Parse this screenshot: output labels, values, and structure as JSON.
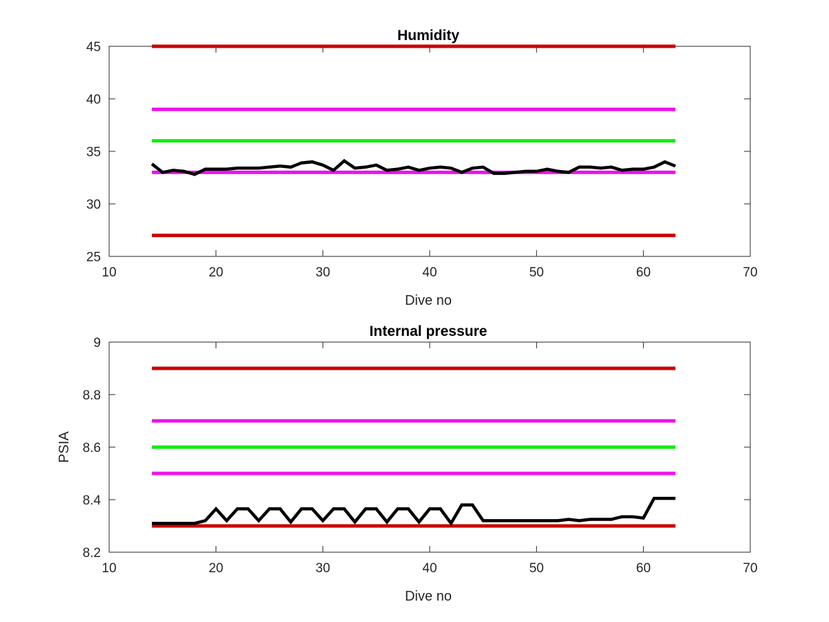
{
  "colors": {
    "red": "#cc0000",
    "magenta": "#ee11ee",
    "green": "#11ee11",
    "black": "#000000"
  },
  "chart_data": [
    {
      "type": "line",
      "title": "Humidity",
      "xlabel": "Dive no",
      "ylabel": "",
      "xlim": [
        10,
        70
      ],
      "ylim": [
        25,
        45
      ],
      "xticks": [
        "10",
        "20",
        "30",
        "40",
        "50",
        "60",
        "70"
      ],
      "yticks": [
        "25",
        "30",
        "35",
        "40",
        "45"
      ],
      "grid": false,
      "reference_lines": [
        {
          "y": 45,
          "x": [
            14,
            63
          ],
          "color": "red"
        },
        {
          "y": 39,
          "x": [
            14,
            63
          ],
          "color": "magenta"
        },
        {
          "y": 36,
          "x": [
            14,
            63
          ],
          "color": "green"
        },
        {
          "y": 33,
          "x": [
            14,
            63
          ],
          "color": "magenta"
        },
        {
          "y": 27,
          "x": [
            14,
            63
          ],
          "color": "red"
        }
      ],
      "series": [
        {
          "color": "black",
          "x": [
            14,
            15,
            16,
            17,
            18,
            19,
            20,
            21,
            22,
            23,
            24,
            25,
            26,
            27,
            28,
            29,
            30,
            31,
            32,
            33,
            34,
            35,
            36,
            37,
            38,
            39,
            40,
            41,
            42,
            43,
            44,
            45,
            46,
            47,
            48,
            49,
            50,
            51,
            52,
            53,
            54,
            55,
            56,
            57,
            58,
            59,
            60,
            61,
            62,
            63
          ],
          "y": [
            33.8,
            33.0,
            33.2,
            33.1,
            32.8,
            33.3,
            33.3,
            33.3,
            33.4,
            33.4,
            33.4,
            33.5,
            33.6,
            33.5,
            33.9,
            34.0,
            33.7,
            33.2,
            34.1,
            33.4,
            33.5,
            33.7,
            33.2,
            33.3,
            33.5,
            33.2,
            33.4,
            33.5,
            33.4,
            33.0,
            33.4,
            33.5,
            32.9,
            32.9,
            33.0,
            33.1,
            33.1,
            33.3,
            33.1,
            33.0,
            33.5,
            33.5,
            33.4,
            33.5,
            33.2,
            33.3,
            33.3,
            33.5,
            34.0,
            33.6
          ]
        }
      ]
    },
    {
      "type": "line",
      "title": "Internal pressure",
      "xlabel": "Dive no",
      "ylabel": "PSIA",
      "xlim": [
        10,
        70
      ],
      "ylim": [
        8.2,
        9.0
      ],
      "xticks": [
        "10",
        "20",
        "30",
        "40",
        "50",
        "60",
        "70"
      ],
      "yticks": [
        "8.2",
        "8.4",
        "8.6",
        "8.8",
        "9"
      ],
      "grid": false,
      "reference_lines": [
        {
          "y": 8.9,
          "x": [
            14,
            63
          ],
          "color": "red"
        },
        {
          "y": 8.7,
          "x": [
            14,
            63
          ],
          "color": "magenta"
        },
        {
          "y": 8.6,
          "x": [
            14,
            63
          ],
          "color": "green"
        },
        {
          "y": 8.5,
          "x": [
            14,
            63
          ],
          "color": "magenta"
        },
        {
          "y": 8.3,
          "x": [
            14,
            63
          ],
          "color": "red"
        }
      ],
      "series": [
        {
          "color": "black",
          "x": [
            14,
            15,
            16,
            17,
            18,
            19,
            20,
            21,
            22,
            23,
            24,
            25,
            26,
            27,
            28,
            29,
            30,
            31,
            32,
            33,
            34,
            35,
            36,
            37,
            38,
            39,
            40,
            41,
            42,
            43,
            44,
            45,
            46,
            47,
            48,
            49,
            50,
            51,
            52,
            53,
            54,
            55,
            56,
            57,
            58,
            59,
            60,
            61,
            62,
            63
          ],
          "y": [
            8.31,
            8.31,
            8.31,
            8.31,
            8.31,
            8.32,
            8.365,
            8.32,
            8.365,
            8.365,
            8.32,
            8.365,
            8.365,
            8.315,
            8.365,
            8.365,
            8.32,
            8.365,
            8.365,
            8.315,
            8.365,
            8.365,
            8.315,
            8.365,
            8.365,
            8.315,
            8.365,
            8.365,
            8.31,
            8.38,
            8.38,
            8.32,
            8.32,
            8.32,
            8.32,
            8.32,
            8.32,
            8.32,
            8.32,
            8.325,
            8.32,
            8.325,
            8.325,
            8.325,
            8.335,
            8.335,
            8.33,
            8.405,
            8.405,
            8.405
          ]
        }
      ]
    }
  ]
}
